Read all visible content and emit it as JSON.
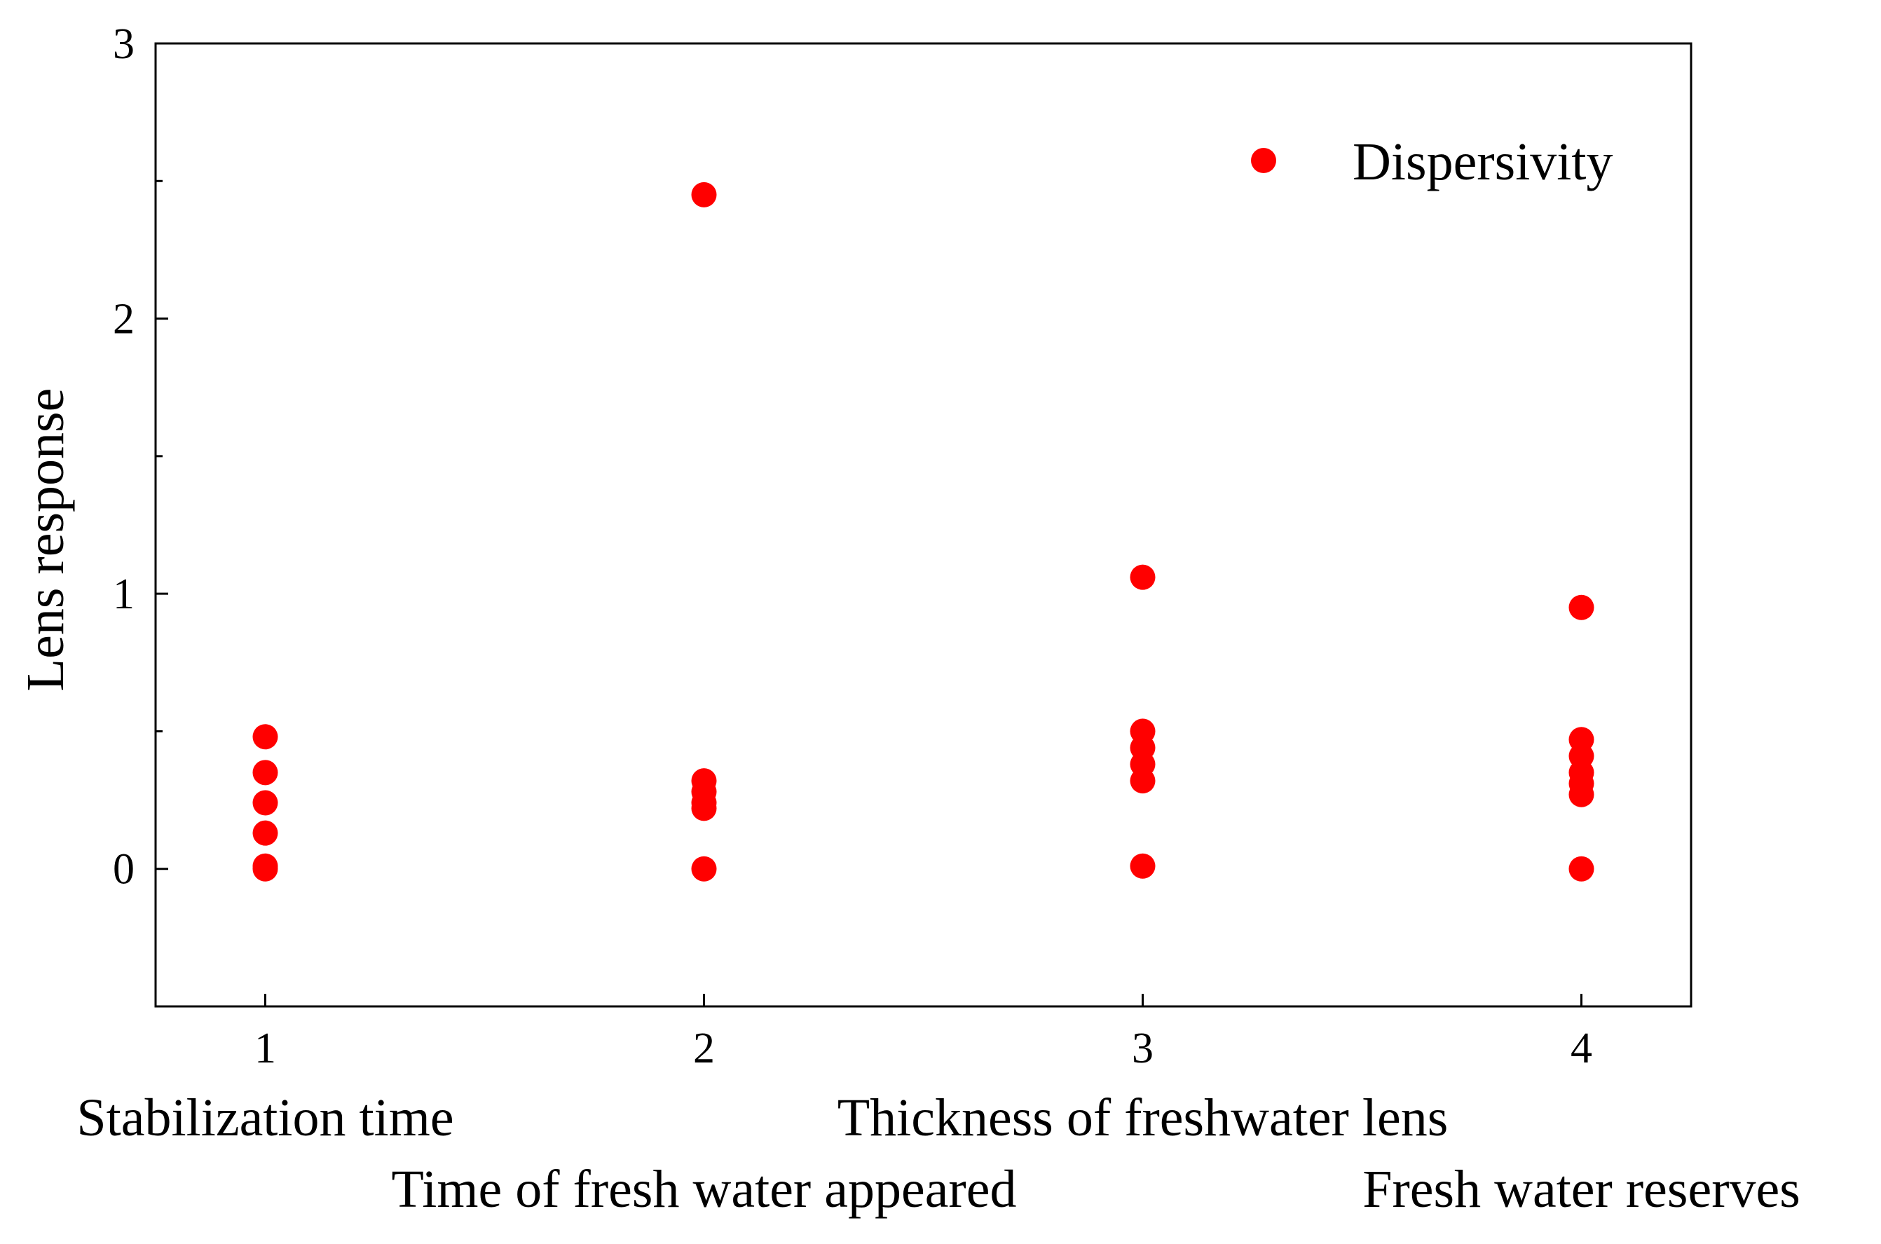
{
  "chart_data": {
    "type": "scatter",
    "title": "",
    "xlabel": "",
    "ylabel": "Lens response",
    "xlim": [
      0.75,
      4.25
    ],
    "ylim": [
      -0.5,
      3
    ],
    "x_ticks": [
      1,
      2,
      3,
      4
    ],
    "x_tick_labels": [
      "1",
      "2",
      "3",
      "4"
    ],
    "y_ticks": [
      0,
      1,
      2,
      3
    ],
    "y_tick_labels": [
      "0",
      "1",
      "2",
      "3"
    ],
    "y_minor_ticks": [
      -0.5,
      0.5,
      1.5,
      2.5
    ],
    "category_labels": [
      {
        "x": 1,
        "text": "Stabilization time",
        "row": 1
      },
      {
        "x": 2,
        "text": "Time of fresh water appeared",
        "row": 2
      },
      {
        "x": 3,
        "text": "Thickness of freshwater lens",
        "row": 1
      },
      {
        "x": 4,
        "text": "Fresh water reserves",
        "row": 2
      }
    ],
    "legend": {
      "position": "top-right",
      "entries": [
        "Dispersivity"
      ]
    },
    "grid": false,
    "series": [
      {
        "name": "Dispersivity",
        "color": "#ff0000",
        "points": [
          {
            "x": 1,
            "y": 0.48
          },
          {
            "x": 1,
            "y": 0.35
          },
          {
            "x": 1,
            "y": 0.24
          },
          {
            "x": 1,
            "y": 0.13
          },
          {
            "x": 1,
            "y": 0.01
          },
          {
            "x": 1,
            "y": 0.0
          },
          {
            "x": 2,
            "y": 2.45
          },
          {
            "x": 2,
            "y": 0.32
          },
          {
            "x": 2,
            "y": 0.28
          },
          {
            "x": 2,
            "y": 0.24
          },
          {
            "x": 2,
            "y": 0.22
          },
          {
            "x": 2,
            "y": 0.0
          },
          {
            "x": 3,
            "y": 1.06
          },
          {
            "x": 3,
            "y": 0.5
          },
          {
            "x": 3,
            "y": 0.44
          },
          {
            "x": 3,
            "y": 0.38
          },
          {
            "x": 3,
            "y": 0.32
          },
          {
            "x": 3,
            "y": 0.01
          },
          {
            "x": 4,
            "y": 0.95
          },
          {
            "x": 4,
            "y": 0.47
          },
          {
            "x": 4,
            "y": 0.41
          },
          {
            "x": 4,
            "y": 0.35
          },
          {
            "x": 4,
            "y": 0.31
          },
          {
            "x": 4,
            "y": 0.27
          },
          {
            "x": 4,
            "y": 0.0
          }
        ]
      }
    ]
  }
}
